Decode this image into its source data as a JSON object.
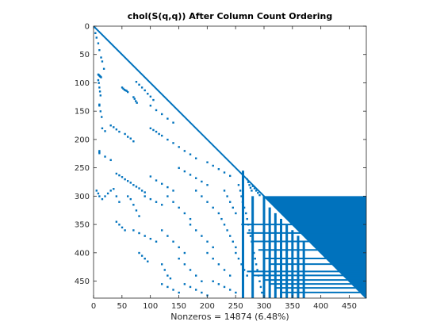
{
  "chart_data": {
    "type": "scatter",
    "title": "chol(S(q,q)) After Column Count Ordering",
    "xlabel": "Nonzeros = 14874 (6.48%)",
    "ylabel": "",
    "matrix_size": 480,
    "xlim": [
      0,
      480
    ],
    "ylim": [
      0,
      480
    ],
    "y_direction": "reversed",
    "x_ticks": [
      0,
      50,
      100,
      150,
      200,
      250,
      300,
      350,
      400,
      450
    ],
    "y_ticks": [
      0,
      50,
      100,
      150,
      200,
      250,
      300,
      350,
      400,
      450
    ],
    "marker_color": "#0072BD",
    "grid": false,
    "lower_triangle_diagonal": [
      [
        0,
        0
      ],
      [
        480,
        480
      ]
    ],
    "dense_block": [
      [
        300,
        300
      ],
      [
        480,
        300
      ],
      [
        480,
        480
      ]
    ],
    "points": [
      [
        3,
        12
      ],
      [
        5,
        20
      ],
      [
        8,
        30
      ],
      [
        10,
        42
      ],
      [
        13,
        55
      ],
      [
        15,
        62
      ],
      [
        18,
        75
      ],
      [
        8,
        85
      ],
      [
        9,
        86
      ],
      [
        10,
        87
      ],
      [
        11,
        88
      ],
      [
        12,
        89
      ],
      [
        13,
        90
      ],
      [
        8,
        95
      ],
      [
        9,
        100
      ],
      [
        10,
        108
      ],
      [
        11,
        115
      ],
      [
        12,
        122
      ],
      [
        50,
        108
      ],
      [
        52,
        110
      ],
      [
        54,
        112
      ],
      [
        56,
        113
      ],
      [
        58,
        114
      ],
      [
        60,
        116
      ],
      [
        75,
        98
      ],
      [
        80,
        103
      ],
      [
        85,
        108
      ],
      [
        90,
        113
      ],
      [
        95,
        119
      ],
      [
        100,
        124
      ],
      [
        105,
        130
      ],
      [
        70,
        125
      ],
      [
        72,
        128
      ],
      [
        74,
        132
      ],
      [
        76,
        135
      ],
      [
        10,
        138
      ],
      [
        10,
        139
      ],
      [
        10,
        140
      ],
      [
        12,
        150
      ],
      [
        14,
        160
      ],
      [
        100,
        140
      ],
      [
        110,
        148
      ],
      [
        120,
        155
      ],
      [
        130,
        163
      ],
      [
        140,
        170
      ],
      [
        15,
        180
      ],
      [
        20,
        185
      ],
      [
        30,
        175
      ],
      [
        35,
        178
      ],
      [
        40,
        182
      ],
      [
        45,
        186
      ],
      [
        55,
        190
      ],
      [
        60,
        195
      ],
      [
        65,
        198
      ],
      [
        70,
        203
      ],
      [
        100,
        180
      ],
      [
        105,
        183
      ],
      [
        110,
        186
      ],
      [
        115,
        190
      ],
      [
        120,
        193
      ],
      [
        130,
        200
      ],
      [
        140,
        206
      ],
      [
        150,
        213
      ],
      [
        160,
        220
      ],
      [
        170,
        226
      ],
      [
        180,
        233
      ],
      [
        10,
        220
      ],
      [
        10,
        222
      ],
      [
        10,
        224
      ],
      [
        20,
        230
      ],
      [
        30,
        236
      ],
      [
        40,
        260
      ],
      [
        45,
        263
      ],
      [
        50,
        266
      ],
      [
        55,
        270
      ],
      [
        60,
        273
      ],
      [
        65,
        276
      ],
      [
        70,
        280
      ],
      [
        75,
        283
      ],
      [
        80,
        286
      ],
      [
        85,
        290
      ],
      [
        90,
        293
      ],
      [
        100,
        265
      ],
      [
        110,
        272
      ],
      [
        120,
        278
      ],
      [
        130,
        284
      ],
      [
        140,
        290
      ],
      [
        150,
        250
      ],
      [
        160,
        256
      ],
      [
        170,
        262
      ],
      [
        180,
        268
      ],
      [
        190,
        274
      ],
      [
        200,
        280
      ],
      [
        200,
        240
      ],
      [
        210,
        246
      ],
      [
        220,
        252
      ],
      [
        230,
        258
      ],
      [
        240,
        264
      ],
      [
        5,
        290
      ],
      [
        8,
        295
      ],
      [
        10,
        300
      ],
      [
        15,
        305
      ],
      [
        20,
        300
      ],
      [
        25,
        295
      ],
      [
        30,
        290
      ],
      [
        35,
        287
      ],
      [
        40,
        300
      ],
      [
        45,
        310
      ],
      [
        60,
        300
      ],
      [
        65,
        305
      ],
      [
        70,
        315
      ],
      [
        75,
        325
      ],
      [
        80,
        335
      ],
      [
        90,
        300
      ],
      [
        100,
        305
      ],
      [
        110,
        310
      ],
      [
        120,
        315
      ],
      [
        130,
        300
      ],
      [
        140,
        310
      ],
      [
        150,
        320
      ],
      [
        160,
        330
      ],
      [
        170,
        340
      ],
      [
        180,
        290
      ],
      [
        190,
        300
      ],
      [
        200,
        310
      ],
      [
        210,
        320
      ],
      [
        220,
        330
      ],
      [
        230,
        290
      ],
      [
        235,
        300
      ],
      [
        240,
        310
      ],
      [
        245,
        320
      ],
      [
        250,
        330
      ],
      [
        40,
        345
      ],
      [
        45,
        350
      ],
      [
        50,
        355
      ],
      [
        55,
        360
      ],
      [
        70,
        360
      ],
      [
        80,
        365
      ],
      [
        90,
        370
      ],
      [
        100,
        375
      ],
      [
        110,
        380
      ],
      [
        120,
        360
      ],
      [
        130,
        370
      ],
      [
        140,
        380
      ],
      [
        150,
        390
      ],
      [
        160,
        400
      ],
      [
        170,
        350
      ],
      [
        180,
        360
      ],
      [
        190,
        370
      ],
      [
        200,
        380
      ],
      [
        210,
        390
      ],
      [
        225,
        340
      ],
      [
        230,
        350
      ],
      [
        235,
        360
      ],
      [
        240,
        370
      ],
      [
        245,
        380
      ],
      [
        250,
        390
      ],
      [
        80,
        400
      ],
      [
        85,
        405
      ],
      [
        90,
        410
      ],
      [
        95,
        415
      ],
      [
        120,
        420
      ],
      [
        125,
        430
      ],
      [
        130,
        440
      ],
      [
        135,
        445
      ],
      [
        150,
        410
      ],
      [
        160,
        420
      ],
      [
        170,
        430
      ],
      [
        180,
        440
      ],
      [
        190,
        450
      ],
      [
        200,
        400
      ],
      [
        210,
        410
      ],
      [
        220,
        420
      ],
      [
        230,
        430
      ],
      [
        240,
        440
      ],
      [
        250,
        400
      ],
      [
        255,
        410
      ],
      [
        260,
        420
      ],
      [
        265,
        430
      ],
      [
        270,
        440
      ],
      [
        120,
        455
      ],
      [
        130,
        460
      ],
      [
        140,
        465
      ],
      [
        150,
        470
      ],
      [
        160,
        455
      ],
      [
        170,
        460
      ],
      [
        180,
        465
      ],
      [
        190,
        470
      ],
      [
        200,
        475
      ],
      [
        210,
        450
      ],
      [
        220,
        455
      ],
      [
        230,
        460
      ],
      [
        240,
        465
      ],
      [
        250,
        470
      ],
      [
        255,
        280
      ],
      [
        258,
        290
      ],
      [
        260,
        300
      ],
      [
        262,
        310
      ],
      [
        265,
        320
      ],
      [
        268,
        330
      ],
      [
        270,
        340
      ],
      [
        272,
        350
      ],
      [
        274,
        360
      ],
      [
        276,
        370
      ],
      [
        278,
        380
      ],
      [
        280,
        390
      ],
      [
        282,
        400
      ],
      [
        284,
        410
      ],
      [
        286,
        420
      ],
      [
        288,
        430
      ],
      [
        290,
        440
      ],
      [
        292,
        450
      ],
      [
        294,
        460
      ],
      [
        296,
        470
      ],
      [
        270,
        270
      ],
      [
        272,
        275
      ],
      [
        274,
        280
      ],
      [
        276,
        285
      ],
      [
        278,
        290
      ],
      [
        280,
        282
      ],
      [
        283,
        286
      ],
      [
        286,
        290
      ],
      [
        289,
        294
      ],
      [
        292,
        298
      ]
    ],
    "vertical_streaks": [
      [
        263,
        255,
        480
      ],
      [
        280,
        300,
        480
      ],
      [
        300,
        300,
        480
      ],
      [
        310,
        320,
        480
      ],
      [
        320,
        330,
        480
      ],
      [
        330,
        340,
        480
      ],
      [
        340,
        350,
        480
      ],
      [
        350,
        360,
        480
      ],
      [
        360,
        370,
        480
      ],
      [
        370,
        380,
        480
      ]
    ],
    "horizontal_streaks": [
      [
        433,
        270,
        480
      ],
      [
        440,
        280,
        480
      ],
      [
        448,
        300,
        480
      ],
      [
        455,
        310,
        480
      ],
      [
        462,
        320,
        480
      ],
      [
        470,
        330,
        480
      ],
      [
        380,
        280,
        480
      ],
      [
        395,
        290,
        480
      ],
      [
        410,
        300,
        480
      ],
      [
        420,
        310,
        480
      ],
      [
        365,
        270,
        480
      ],
      [
        350,
        260,
        480
      ]
    ]
  }
}
